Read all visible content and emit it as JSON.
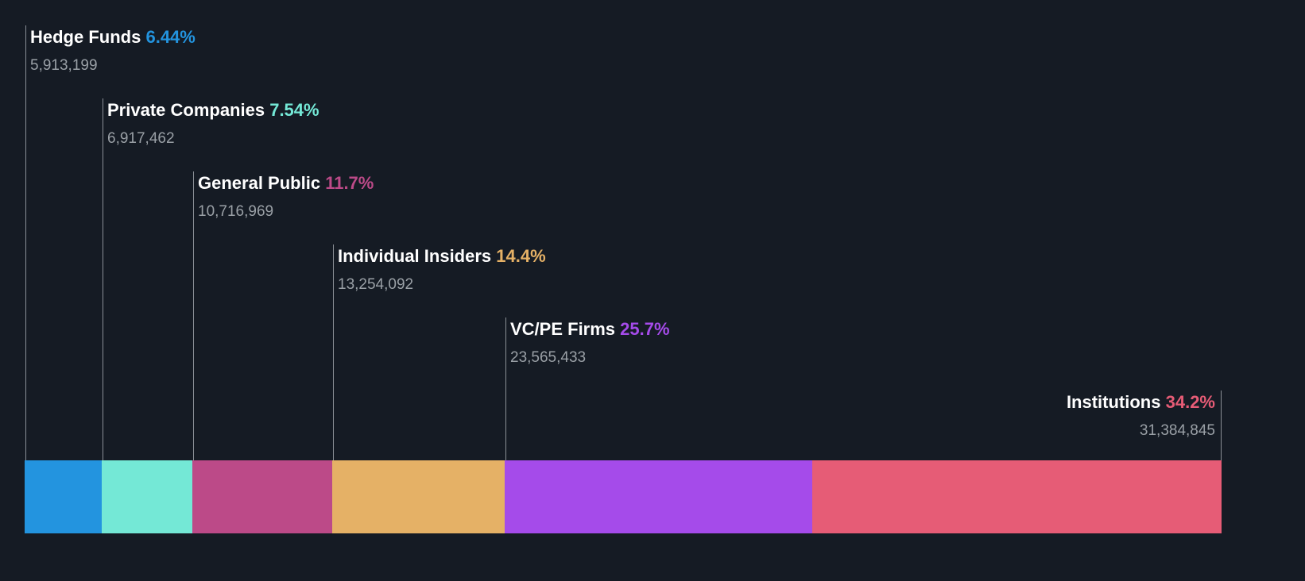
{
  "chart_data": {
    "type": "bar",
    "subtype": "stacked-horizontal-ownership",
    "categories": [
      "Hedge Funds",
      "Private Companies",
      "General Public",
      "Individual Insiders",
      "VC/PE Firms",
      "Institutions"
    ],
    "segments": [
      {
        "name": "Hedge Funds",
        "percent_label": "6.44%",
        "percent": 6.44,
        "shares_label": "5,913,199",
        "shares": 5913199,
        "color": "#2394df"
      },
      {
        "name": "Private Companies",
        "percent_label": "7.54%",
        "percent": 7.54,
        "shares_label": "6,917,462",
        "shares": 6917462,
        "color": "#74e8d6"
      },
      {
        "name": "General Public",
        "percent_label": "11.7%",
        "percent": 11.7,
        "shares_label": "10,716,969",
        "shares": 10716969,
        "color": "#bc4a88"
      },
      {
        "name": "Individual Insiders",
        "percent_label": "14.4%",
        "percent": 14.4,
        "shares_label": "13,254,092",
        "shares": 13254092,
        "color": "#e5b166"
      },
      {
        "name": "VC/PE Firms",
        "percent_label": "25.7%",
        "percent": 25.7,
        "shares_label": "23,565,433",
        "shares": 23565433,
        "color": "#a54bea"
      },
      {
        "name": "Institutions",
        "percent_label": "34.2%",
        "percent": 34.2,
        "shares_label": "31,384,845",
        "shares": 31384845,
        "color": "#e65c76"
      }
    ],
    "title": "",
    "xlabel": "",
    "ylabel": "",
    "grid": false,
    "legend": "none"
  }
}
